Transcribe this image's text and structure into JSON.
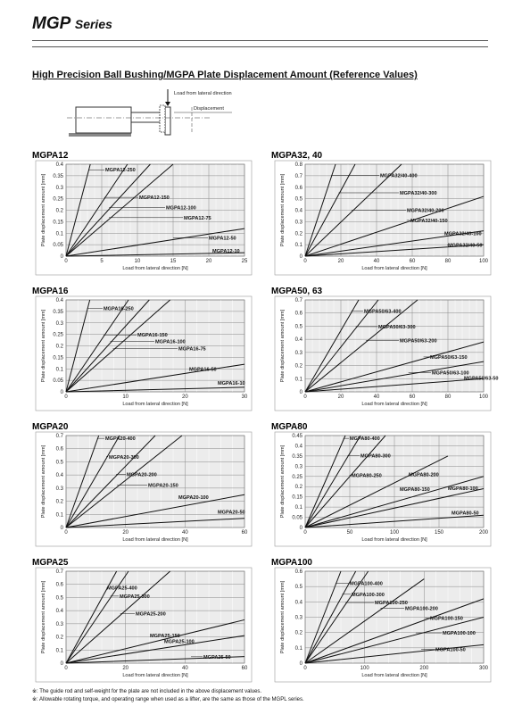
{
  "header": {
    "series": "MGP",
    "series_suffix": "Series",
    "section_title": "High Precision Ball Bushing/MGPA Plate Displacement Amount (Reference Values)"
  },
  "diagram": {
    "load_label": "Load from lateral direction",
    "displacement_label": "Displacement"
  },
  "footnotes": [
    "※: The guide rod and self-weight for the plate are not included in the above displacement values.",
    "※: Allowable rotating torque, and operating range when used as a lifter, are the same as those of the MGPL series."
  ],
  "chart_data": [
    {
      "type": "line",
      "title": "MGPA12",
      "xlabel": "Load from lateral direction [N]",
      "ylabel": "Plate displacement amount [mm]",
      "xlim": [
        0,
        25
      ],
      "ylim": [
        0,
        0.4
      ],
      "xticks": [
        0,
        5,
        10,
        15,
        20,
        25
      ],
      "yticks": [
        0,
        0.05,
        0.1,
        0.15,
        0.2,
        0.25,
        0.3,
        0.35,
        0.4
      ],
      "grid": true,
      "series": [
        {
          "name": "MGPA12-250",
          "x": [
            0,
            3.4
          ],
          "y": [
            0,
            0.4
          ]
        },
        {
          "name": "MGPA12-150",
          "x": [
            0,
            8.6
          ],
          "y": [
            0,
            0.4
          ]
        },
        {
          "name": "MGPA12-100",
          "x": [
            0,
            11.8
          ],
          "y": [
            0,
            0.4
          ]
        },
        {
          "name": "MGPA12-75",
          "x": [
            0,
            15
          ],
          "y": [
            0,
            0.4
          ]
        },
        {
          "name": "MGPA12-50",
          "x": [
            0,
            25
          ],
          "y": [
            0,
            0.12
          ]
        },
        {
          "name": "MGPA12-10",
          "x": [
            0,
            25
          ],
          "y": [
            0,
            0.015
          ]
        }
      ]
    },
    {
      "type": "line",
      "title": "MGPA32, 40",
      "xlabel": "Load from lateral direction [N]",
      "ylabel": "Plate displacement amount [mm]",
      "xlim": [
        0,
        100
      ],
      "ylim": [
        0,
        0.8
      ],
      "xticks": [
        0,
        20,
        40,
        60,
        80,
        100
      ],
      "yticks": [
        0,
        0.1,
        0.2,
        0.3,
        0.4,
        0.5,
        0.6,
        0.7,
        0.8
      ],
      "grid": true,
      "series": [
        {
          "name": "MGPA32/40-400",
          "x": [
            0,
            17
          ],
          "y": [
            0,
            0.8
          ]
        },
        {
          "name": "MGPA32/40-300",
          "x": [
            0,
            28
          ],
          "y": [
            0,
            0.8
          ]
        },
        {
          "name": "MGPA32/40-200",
          "x": [
            0,
            54
          ],
          "y": [
            0,
            0.8
          ]
        },
        {
          "name": "MGPA32/40-150",
          "x": [
            0,
            100
          ],
          "y": [
            0,
            0.52
          ]
        },
        {
          "name": "MGPA32/40-100",
          "x": [
            0,
            100
          ],
          "y": [
            0,
            0.22
          ]
        },
        {
          "name": "MGPA32/40-50",
          "x": [
            0,
            100
          ],
          "y": [
            0,
            0.1
          ]
        }
      ]
    },
    {
      "type": "line",
      "title": "MGPA16",
      "xlabel": "Load from lateral direction [N]",
      "ylabel": "Plate displacement amount [mm]",
      "xlim": [
        0,
        30
      ],
      "ylim": [
        0,
        0.4
      ],
      "xticks": [
        0,
        10,
        20,
        30
      ],
      "yticks": [
        0,
        0.05,
        0.1,
        0.15,
        0.2,
        0.25,
        0.3,
        0.35,
        0.4
      ],
      "grid": true,
      "series": [
        {
          "name": "MGPA16-250",
          "x": [
            0,
            4
          ],
          "y": [
            0,
            0.4
          ]
        },
        {
          "name": "MGPA16-150",
          "x": [
            0,
            10.5
          ],
          "y": [
            0,
            0.4
          ]
        },
        {
          "name": "MGPA16-100",
          "x": [
            0,
            14
          ],
          "y": [
            0,
            0.4
          ]
        },
        {
          "name": "MGPA16-75",
          "x": [
            0,
            17.5
          ],
          "y": [
            0,
            0.4
          ]
        },
        {
          "name": "MGPA16-50",
          "x": [
            0,
            30
          ],
          "y": [
            0,
            0.12
          ]
        },
        {
          "name": "MGPA16-10",
          "x": [
            0,
            30
          ],
          "y": [
            0,
            0.02
          ]
        }
      ]
    },
    {
      "type": "line",
      "title": "MGPA50, 63",
      "xlabel": "Load from lateral direction [N]",
      "ylabel": "Plate displacement amount [mm]",
      "xlim": [
        0,
        100
      ],
      "ylim": [
        0,
        0.7
      ],
      "xticks": [
        0,
        20,
        40,
        60,
        80,
        100
      ],
      "yticks": [
        0,
        0.1,
        0.2,
        0.3,
        0.4,
        0.5,
        0.6,
        0.7
      ],
      "grid": true,
      "series": [
        {
          "name": "MGPA50/63-400",
          "x": [
            0,
            30
          ],
          "y": [
            0,
            0.7
          ]
        },
        {
          "name": "MGPA50/63-300",
          "x": [
            0,
            41
          ],
          "y": [
            0,
            0.7
          ]
        },
        {
          "name": "MGPA50/63-200",
          "x": [
            0,
            63
          ],
          "y": [
            0,
            0.7
          ]
        },
        {
          "name": "MGPA50/63-150",
          "x": [
            0,
            100
          ],
          "y": [
            0,
            0.38
          ]
        },
        {
          "name": "MGPA50/63-100",
          "x": [
            0,
            100
          ],
          "y": [
            0,
            0.23
          ]
        },
        {
          "name": "MGPA50/63-50",
          "x": [
            0,
            100
          ],
          "y": [
            0,
            0.1
          ]
        }
      ]
    },
    {
      "type": "line",
      "title": "MGPA20",
      "xlabel": "Load from lateral direction [N]",
      "ylabel": "Plate displacement amount [mm]",
      "xlim": [
        0,
        60
      ],
      "ylim": [
        0,
        0.7
      ],
      "xticks": [
        0,
        20,
        40,
        60
      ],
      "yticks": [
        0,
        0.1,
        0.2,
        0.3,
        0.4,
        0.5,
        0.6,
        0.7
      ],
      "grid": true,
      "series": [
        {
          "name": "MGPA20-400",
          "x": [
            0,
            11
          ],
          "y": [
            0,
            0.7
          ]
        },
        {
          "name": "MGPA20-300",
          "x": [
            0,
            18
          ],
          "y": [
            0,
            0.7
          ]
        },
        {
          "name": "MGPA20-200",
          "x": [
            0,
            30
          ],
          "y": [
            0,
            0.7
          ]
        },
        {
          "name": "MGPA20-150",
          "x": [
            0,
            39
          ],
          "y": [
            0,
            0.7
          ]
        },
        {
          "name": "MGPA20-100",
          "x": [
            0,
            60
          ],
          "y": [
            0,
            0.25
          ]
        },
        {
          "name": "MGPA20-50",
          "x": [
            0,
            60
          ],
          "y": [
            0,
            0.07
          ]
        }
      ]
    },
    {
      "type": "line",
      "title": "MGPA80",
      "xlabel": "Load from lateral direction [N]",
      "ylabel": "Plate displacement amount [mm]",
      "xlim": [
        0,
        200
      ],
      "ylim": [
        0,
        0.45
      ],
      "xticks": [
        0,
        50,
        100,
        150,
        200
      ],
      "yticks": [
        0,
        0.05,
        0.1,
        0.15,
        0.2,
        0.25,
        0.3,
        0.35,
        0.4,
        0.45
      ],
      "grid": true,
      "series": [
        {
          "name": "MGPA80-400",
          "x": [
            0,
            45
          ],
          "y": [
            0,
            0.45
          ]
        },
        {
          "name": "MGPA80-300",
          "x": [
            0,
            62
          ],
          "y": [
            0,
            0.45
          ]
        },
        {
          "name": "MGPA80-250",
          "x": [
            0,
            90
          ],
          "y": [
            0,
            0.45
          ]
        },
        {
          "name": "MGPA80-200",
          "x": [
            0,
            160
          ],
          "y": [
            0,
            0.35
          ]
        },
        {
          "name": "MGPA80-150",
          "x": [
            0,
            200
          ],
          "y": [
            0,
            0.25
          ]
        },
        {
          "name": "MGPA80-100",
          "x": [
            0,
            200
          ],
          "y": [
            0,
            0.19
          ]
        },
        {
          "name": "MGPA80-50",
          "x": [
            0,
            200
          ],
          "y": [
            0,
            0.06
          ]
        }
      ]
    },
    {
      "type": "line",
      "title": "MGPA25",
      "xlabel": "Load from lateral direction [N]",
      "ylabel": "Plate displacement amount [mm]",
      "xlim": [
        0,
        60
      ],
      "ylim": [
        0,
        0.7
      ],
      "xticks": [
        0,
        20,
        40,
        60
      ],
      "yticks": [
        0,
        0.1,
        0.2,
        0.3,
        0.4,
        0.5,
        0.6,
        0.7
      ],
      "grid": true,
      "series": [
        {
          "name": "MGPA25-400",
          "x": [
            0,
            17
          ],
          "y": [
            0,
            0.7
          ]
        },
        {
          "name": "MGPA25-300",
          "x": [
            0,
            21
          ],
          "y": [
            0,
            0.7
          ]
        },
        {
          "name": "MGPA25-200",
          "x": [
            0,
            35
          ],
          "y": [
            0,
            0.7
          ]
        },
        {
          "name": "MGPA25-150",
          "x": [
            0,
            60
          ],
          "y": [
            0,
            0.33
          ]
        },
        {
          "name": "MGPA25-100",
          "x": [
            0,
            60
          ],
          "y": [
            0,
            0.21
          ]
        },
        {
          "name": "MGPA25-50",
          "x": [
            0,
            60
          ],
          "y": [
            0,
            0.05
          ]
        }
      ]
    },
    {
      "type": "line",
      "title": "MGPA100",
      "xlabel": "Load from lateral direction [N]",
      "ylabel": "Plate displacement amount [mm]",
      "xlim": [
        0,
        300
      ],
      "ylim": [
        0,
        0.6
      ],
      "xticks": [
        0,
        100,
        200,
        300
      ],
      "yticks": [
        0,
        0.1,
        0.2,
        0.3,
        0.4,
        0.5,
        0.6
      ],
      "grid": true,
      "series": [
        {
          "name": "MGPA100-400",
          "x": [
            0,
            60
          ],
          "y": [
            0,
            0.6
          ]
        },
        {
          "name": "MGPA100-300",
          "x": [
            0,
            85
          ],
          "y": [
            0,
            0.6
          ]
        },
        {
          "name": "MGPA100-250",
          "x": [
            0,
            106
          ],
          "y": [
            0,
            0.6
          ]
        },
        {
          "name": "MGPA100-200",
          "x": [
            0,
            200
          ],
          "y": [
            0,
            0.55
          ]
        },
        {
          "name": "MGPA100-150",
          "x": [
            0,
            300
          ],
          "y": [
            0,
            0.42
          ]
        },
        {
          "name": "MGPA100-100",
          "x": [
            0,
            300
          ],
          "y": [
            0,
            0.3
          ]
        },
        {
          "name": "MGPA100-50",
          "x": [
            0,
            300
          ],
          "y": [
            0,
            0.12
          ]
        }
      ]
    }
  ]
}
